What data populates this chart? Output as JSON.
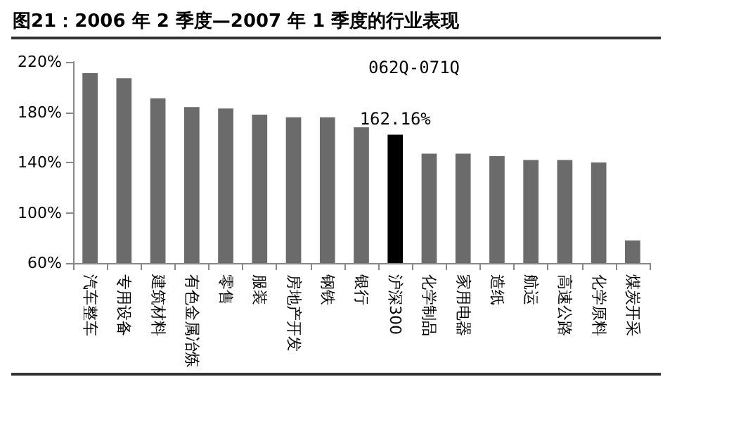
{
  "chart_data": {
    "type": "bar",
    "title": "图21：2006 年 2 季度—2007 年 1 季度的行业表现",
    "categories": [
      "汽车整车",
      "专用设备",
      "建筑材料",
      "有色金属冶炼",
      "零售",
      "服装",
      "房地产开发",
      "钢铁",
      "银行",
      "沪深300",
      "化学制品",
      "家用电器",
      "造纸",
      "航运",
      "高速公路",
      "化学原料",
      "煤炭开采"
    ],
    "values": [
      211,
      207,
      191,
      184,
      183,
      178,
      176,
      176,
      168,
      162.16,
      147,
      147,
      145,
      142,
      142,
      140,
      78
    ],
    "colors": [
      "#6b6b6b",
      "#6b6b6b",
      "#6b6b6b",
      "#6b6b6b",
      "#6b6b6b",
      "#6b6b6b",
      "#6b6b6b",
      "#6b6b6b",
      "#6b6b6b",
      "#000000",
      "#6b6b6b",
      "#6b6b6b",
      "#6b6b6b",
      "#6b6b6b",
      "#6b6b6b",
      "#6b6b6b",
      "#6b6b6b"
    ],
    "value_labels": [
      null,
      null,
      null,
      null,
      null,
      null,
      null,
      null,
      null,
      "162.16%",
      null,
      null,
      null,
      null,
      null,
      null,
      null
    ],
    "ylim": [
      60,
      220
    ],
    "yticks": [
      {
        "value": 60,
        "label": "60%"
      },
      {
        "value": 100,
        "label": "100%"
      },
      {
        "value": 140,
        "label": "140%"
      },
      {
        "value": 180,
        "label": "180%"
      },
      {
        "value": 220,
        "label": "220%"
      }
    ],
    "annotations": [
      "062Q-071Q"
    ],
    "grid": false
  }
}
